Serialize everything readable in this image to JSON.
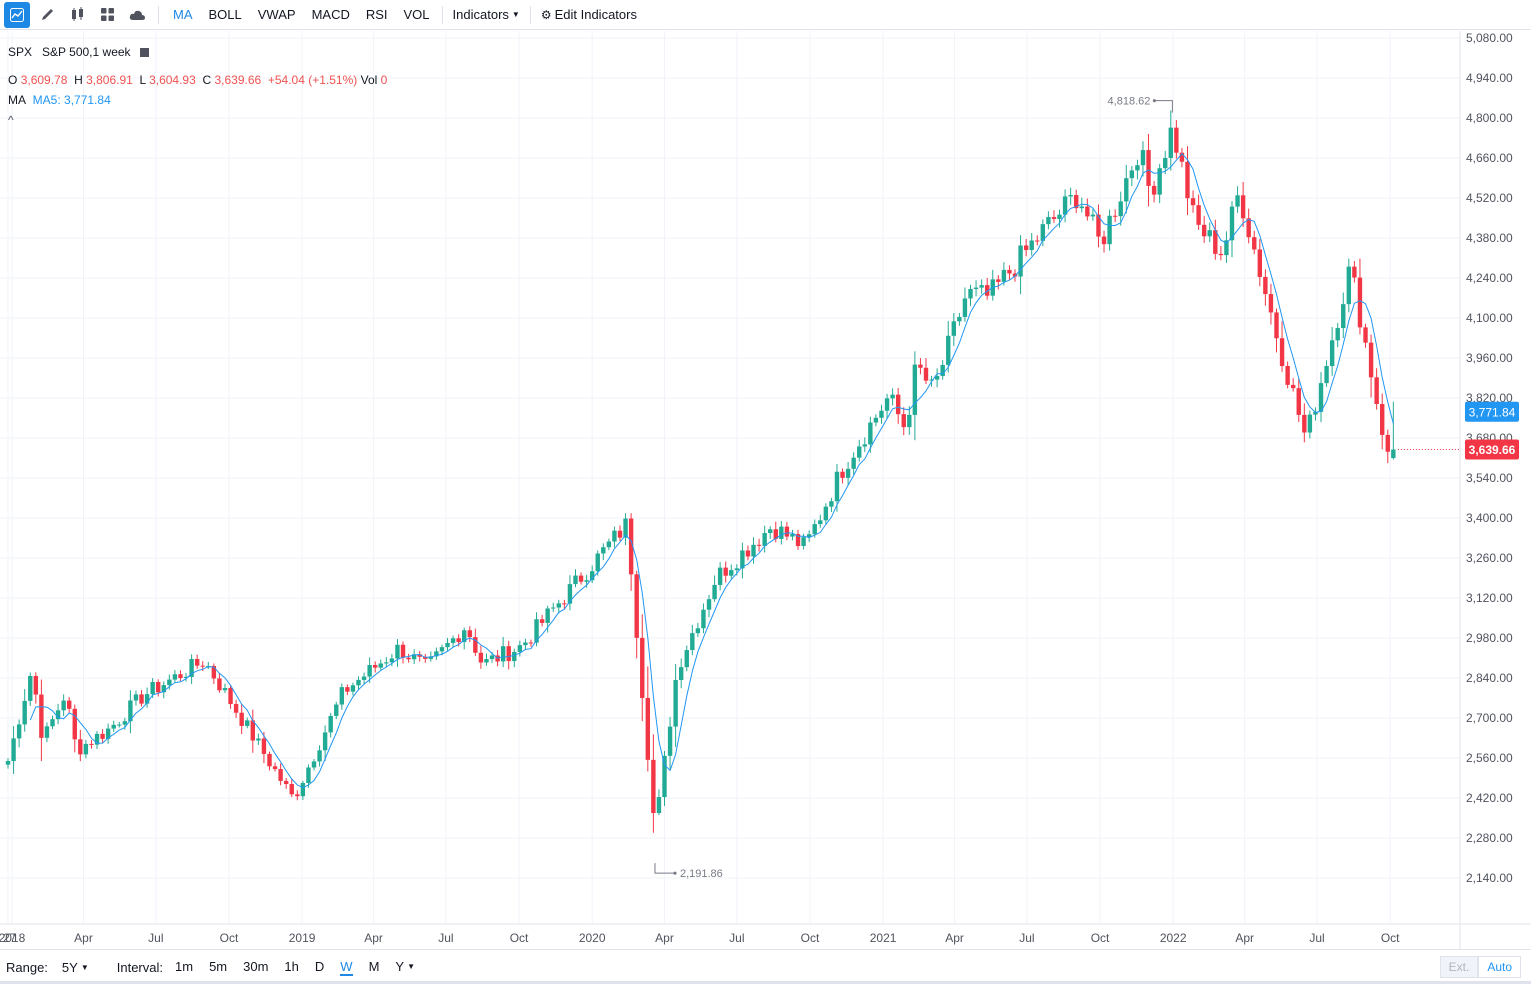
{
  "toolbar": {
    "tools": [
      "trend-line-icon",
      "pencil-icon",
      "candles-icon",
      "layout-grid-icon",
      "cloud-icon"
    ],
    "indicator_tabs": [
      "MA",
      "BOLL",
      "VWAP",
      "MACD",
      "RSI",
      "VOL"
    ],
    "active_tab": "MA",
    "indicators_label": "Indicators",
    "edit_indicators_label": "Edit Indicators"
  },
  "legend": {
    "symbol": "SPX",
    "description": "S&P 500,1 week",
    "o_label": "O",
    "o_value": "3,609.78",
    "h_label": "H",
    "h_value": "3,806.91",
    "l_label": "L",
    "l_value": "3,604.93",
    "c_label": "C",
    "c_value": "3,639.66",
    "change": "+54.04 (+1.51%)",
    "vol_label": "Vol",
    "vol_value": "0",
    "ma_label": "MA",
    "ma5_label": "MA5:",
    "ma5_value": "3,771.84",
    "collapse": "^"
  },
  "price_badges": {
    "ma5": "3,771.84",
    "last": "3,639.66"
  },
  "colors": {
    "up": "#26a69a",
    "up_body": "#22ab94",
    "down": "#f23645",
    "ma": "#2196f3",
    "accent": "#1e88e5"
  },
  "chart_data": {
    "type": "candlestick",
    "symbol": "SPX",
    "interval": "1 week",
    "y_ticks": [
      "5,080.00",
      "4,940.00",
      "4,800.00",
      "4,660.00",
      "4,520.00",
      "4,380.00",
      "4,240.00",
      "4,100.00",
      "3,960.00",
      "3,820.00",
      "3,680.00",
      "3,540.00",
      "3,400.00",
      "3,260.00",
      "3,120.00",
      "2,980.00",
      "2,840.00",
      "2,700.00",
      "2,560.00",
      "2,420.00",
      "2,280.00",
      "2,140.00"
    ],
    "ylim": [
      2100,
      5120
    ],
    "x_ticks": [
      "27",
      "2018",
      "Apr",
      "Jul",
      "Oct",
      "2019",
      "Apr",
      "Jul",
      "Oct",
      "2020",
      "Apr",
      "Jul",
      "Oct",
      "2021",
      "Apr",
      "Jul",
      "Oct",
      "2022",
      "Apr",
      "Jul",
      "Oct"
    ],
    "annotations": [
      {
        "label": "4,818.62",
        "type": "high"
      },
      {
        "label": "2,191.86",
        "type": "low"
      }
    ],
    "series": [
      {
        "name": "MA5",
        "last": 3771.84
      }
    ],
    "anchors": [
      [
        "2017-12-27",
        2550
      ],
      [
        "2018-01-26",
        2872
      ],
      [
        "2018-02-09",
        2619
      ],
      [
        "2018-03-09",
        2786
      ],
      [
        "2018-03-23",
        2588
      ],
      [
        "2018-05-04",
        2663
      ],
      [
        "2018-06-15",
        2779
      ],
      [
        "2018-08-31",
        2901
      ],
      [
        "2018-10-26",
        2658
      ],
      [
        "2018-12-21",
        2416
      ],
      [
        "2019-02-22",
        2792
      ],
      [
        "2019-05-03",
        2945
      ],
      [
        "2019-06-07",
        2873
      ],
      [
        "2019-07-26",
        3025
      ],
      [
        "2019-08-16",
        2888
      ],
      [
        "2019-10-04",
        2952
      ],
      [
        "2020-02-14",
        3380
      ],
      [
        "2020-03-20",
        2304
      ],
      [
        "2020-04-17",
        2874
      ],
      [
        "2020-06-05",
        3193
      ],
      [
        "2020-08-14",
        3372
      ],
      [
        "2020-09-25",
        3298
      ],
      [
        "2020-11-13",
        3585
      ],
      [
        "2021-01-08",
        3824
      ],
      [
        "2021-01-29",
        3714
      ],
      [
        "2021-02-12",
        3934
      ],
      [
        "2021-03-05",
        3841
      ],
      [
        "2021-04-16",
        4185
      ],
      [
        "2021-05-14",
        4173
      ],
      [
        "2021-07-23",
        4411
      ],
      [
        "2021-09-03",
        4535
      ],
      [
        "2021-10-01",
        4357
      ],
      [
        "2021-11-19",
        4698
      ],
      [
        "2021-12-03",
        4538
      ],
      [
        "2021-12-31",
        4766
      ],
      [
        "2022-01-28",
        4431
      ],
      [
        "2022-03-04",
        4329
      ],
      [
        "2022-03-25",
        4543
      ],
      [
        "2022-05-13",
        4023
      ],
      [
        "2022-06-17",
        3675
      ],
      [
        "2022-08-12",
        4280
      ],
      [
        "2022-09-30",
        3585
      ],
      [
        "2022-10-07",
        3639.66
      ]
    ],
    "high": 4818.62,
    "low": 2191.86,
    "last_close": 3639.66
  },
  "bottom": {
    "range_label": "Range:",
    "range_value": "5Y",
    "interval_label": "Interval:",
    "intervals": [
      "1m",
      "5m",
      "30m",
      "1h",
      "D",
      "W",
      "M",
      "Y"
    ],
    "active_interval": "W",
    "ext_label": "Ext.",
    "auto_label": "Auto"
  }
}
